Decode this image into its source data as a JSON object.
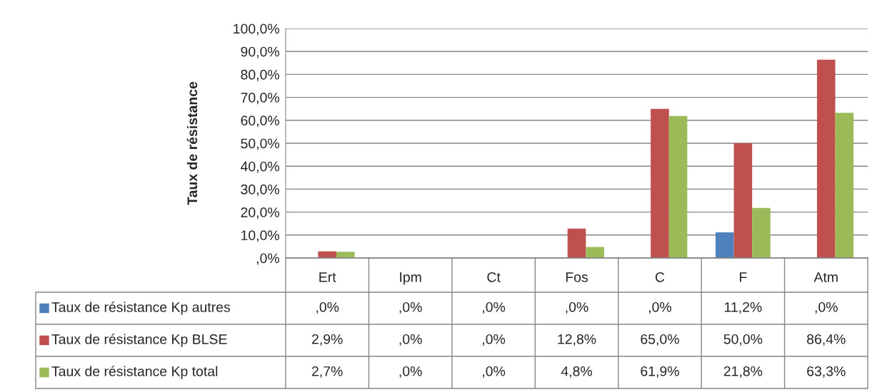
{
  "chart_data": {
    "type": "bar",
    "ylabel": "Taux de résistance",
    "categories": [
      "Ert",
      "Ipm",
      "Ct",
      "Fos",
      "C",
      "F",
      "Atm"
    ],
    "series": [
      {
        "name": "Taux de résistance Kp autres",
        "color": "#4f81bd",
        "values": [
          0,
          0,
          0,
          0,
          0,
          11.2,
          0
        ],
        "value_labels": [
          ",0%",
          ",0%",
          ",0%",
          ",0%",
          ",0%",
          "11,2%",
          ",0%"
        ]
      },
      {
        "name": "Taux de résistance Kp BLSE",
        "color": "#c0504d",
        "values": [
          2.9,
          0,
          0,
          12.8,
          65.0,
          50.0,
          86.4
        ],
        "value_labels": [
          "2,9%",
          ",0%",
          ",0%",
          "12,8%",
          "65,0%",
          "50,0%",
          "86,4%"
        ]
      },
      {
        "name": "Taux de résistance Kp total",
        "color": "#9bbb59",
        "values": [
          2.7,
          0,
          0,
          4.8,
          61.9,
          21.8,
          63.3
        ],
        "value_labels": [
          "2,7%",
          ",0%",
          ",0%",
          "4,8%",
          "61,9%",
          "21,8%",
          "63,3%"
        ]
      }
    ],
    "ylim": [
      0,
      100
    ],
    "yticks": [
      {
        "value": 0,
        "label": ",0%"
      },
      {
        "value": 10,
        "label": "10,0%"
      },
      {
        "value": 20,
        "label": "20,0%"
      },
      {
        "value": 30,
        "label": "30,0%"
      },
      {
        "value": 40,
        "label": "40,0%"
      },
      {
        "value": 50,
        "label": "50,0%"
      },
      {
        "value": 60,
        "label": "60,0%"
      },
      {
        "value": 70,
        "label": "70,0%"
      },
      {
        "value": 80,
        "label": "80,0%"
      },
      {
        "value": 90,
        "label": "90,0%"
      },
      {
        "value": 100,
        "label": "100,0%"
      }
    ],
    "grid": "y",
    "legend": "bottom"
  }
}
